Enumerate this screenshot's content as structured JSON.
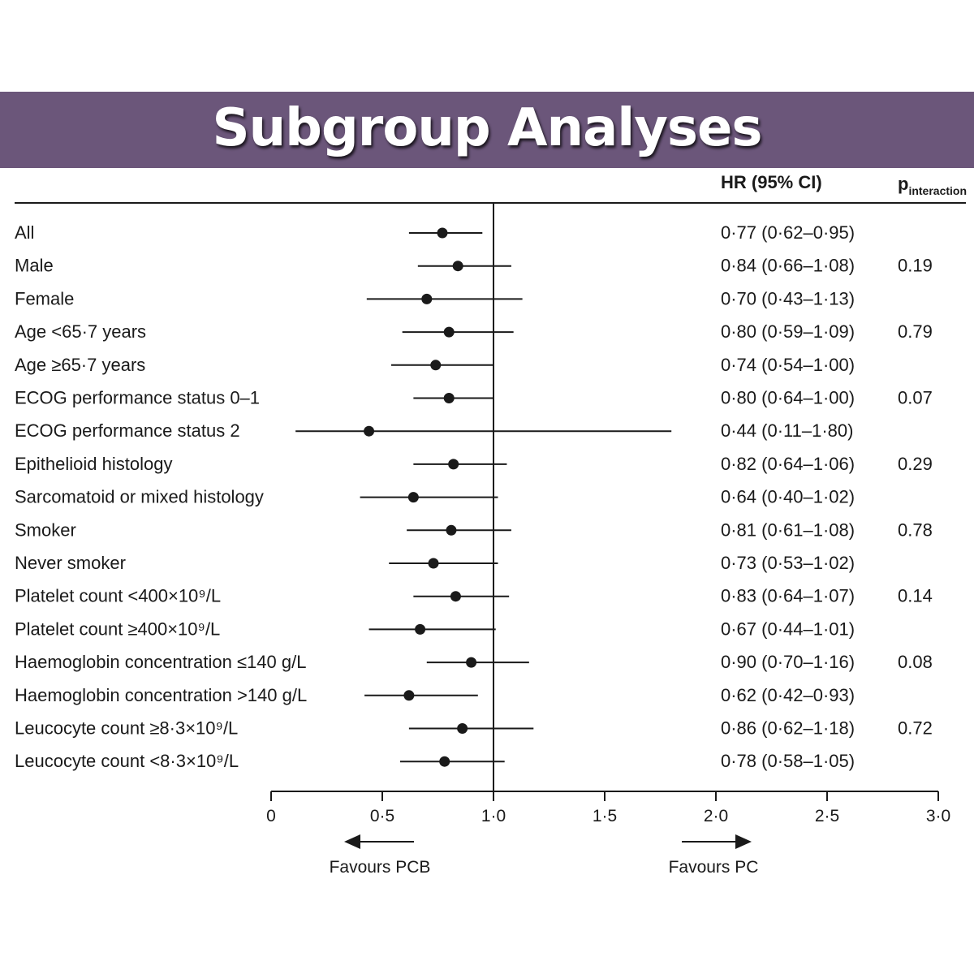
{
  "title": "Subgroup Analyses",
  "colors": {
    "banner": "#6b567a",
    "title_text": "#ffffff",
    "ink": "#1a1a1a"
  },
  "chart_data": {
    "type": "forest",
    "columns": {
      "hr": "HR (95% CI)",
      "p_main": "p",
      "p_sub": "interaction"
    },
    "reference_line": 1.0,
    "xlim": [
      0,
      3.0
    ],
    "xticks": [
      {
        "value": 0,
        "label": "0"
      },
      {
        "value": 0.5,
        "label": "0·5"
      },
      {
        "value": 1.0,
        "label": "1·0"
      },
      {
        "value": 1.5,
        "label": "1·5"
      },
      {
        "value": 2.0,
        "label": "2·0"
      },
      {
        "value": 2.5,
        "label": "2·5"
      },
      {
        "value": 3.0,
        "label": "3·0"
      }
    ],
    "favours_left": "Favours PCB",
    "favours_right": "Favours PC",
    "rows": [
      {
        "label": "All",
        "hr": 0.77,
        "lo": 0.62,
        "hi": 0.95,
        "text": "0·77 (0·62–0·95)",
        "p": ""
      },
      {
        "label": "Male",
        "hr": 0.84,
        "lo": 0.66,
        "hi": 1.08,
        "text": "0·84 (0·66–1·08)",
        "p": "0.19"
      },
      {
        "label": "Female",
        "hr": 0.7,
        "lo": 0.43,
        "hi": 1.13,
        "text": "0·70 (0·43–1·13)",
        "p": ""
      },
      {
        "label": "Age <65·7 years",
        "hr": 0.8,
        "lo": 0.59,
        "hi": 1.09,
        "text": "0·80 (0·59–1·09)",
        "p": "0.79"
      },
      {
        "label": "Age ≥65·7 years",
        "hr": 0.74,
        "lo": 0.54,
        "hi": 1.0,
        "text": "0·74 (0·54–1·00)",
        "p": ""
      },
      {
        "label": "ECOG performance status 0–1",
        "hr": 0.8,
        "lo": 0.64,
        "hi": 1.0,
        "text": "0·80 (0·64–1·00)",
        "p": "0.07"
      },
      {
        "label": "ECOG performance status 2",
        "hr": 0.44,
        "lo": 0.11,
        "hi": 1.8,
        "text": "0·44 (0·11–1·80)",
        "p": ""
      },
      {
        "label": "Epithelioid histology",
        "hr": 0.82,
        "lo": 0.64,
        "hi": 1.06,
        "text": "0·82 (0·64–1·06)",
        "p": "0.29"
      },
      {
        "label": "Sarcomatoid or mixed histology",
        "hr": 0.64,
        "lo": 0.4,
        "hi": 1.02,
        "text": "0·64 (0·40–1·02)",
        "p": ""
      },
      {
        "label": "Smoker",
        "hr": 0.81,
        "lo": 0.61,
        "hi": 1.08,
        "text": "0·81 (0·61–1·08)",
        "p": "0.78"
      },
      {
        "label": "Never smoker",
        "hr": 0.73,
        "lo": 0.53,
        "hi": 1.02,
        "text": "0·73 (0·53–1·02)",
        "p": ""
      },
      {
        "label": "Platelet count <400×10⁹/L",
        "hr": 0.83,
        "lo": 0.64,
        "hi": 1.07,
        "text": "0·83 (0·64–1·07)",
        "p": "0.14"
      },
      {
        "label": "Platelet count ≥400×10⁹/L",
        "hr": 0.67,
        "lo": 0.44,
        "hi": 1.01,
        "text": "0·67 (0·44–1·01)",
        "p": ""
      },
      {
        "label": "Haemoglobin concentration ≤140 g/L",
        "hr": 0.9,
        "lo": 0.7,
        "hi": 1.16,
        "text": "0·90 (0·70–1·16)",
        "p": "0.08"
      },
      {
        "label": "Haemoglobin concentration >140 g/L",
        "hr": 0.62,
        "lo": 0.42,
        "hi": 0.93,
        "text": "0·62 (0·42–0·93)",
        "p": ""
      },
      {
        "label": "Leucocyte count ≥8·3×10⁹/L",
        "hr": 0.86,
        "lo": 0.62,
        "hi": 1.18,
        "text": "0·86 (0·62–1·18)",
        "p": "0.72"
      },
      {
        "label": "Leucocyte count <8·3×10⁹/L",
        "hr": 0.78,
        "lo": 0.58,
        "hi": 1.05,
        "text": "0·78 (0·58–1·05)",
        "p": ""
      }
    ]
  }
}
